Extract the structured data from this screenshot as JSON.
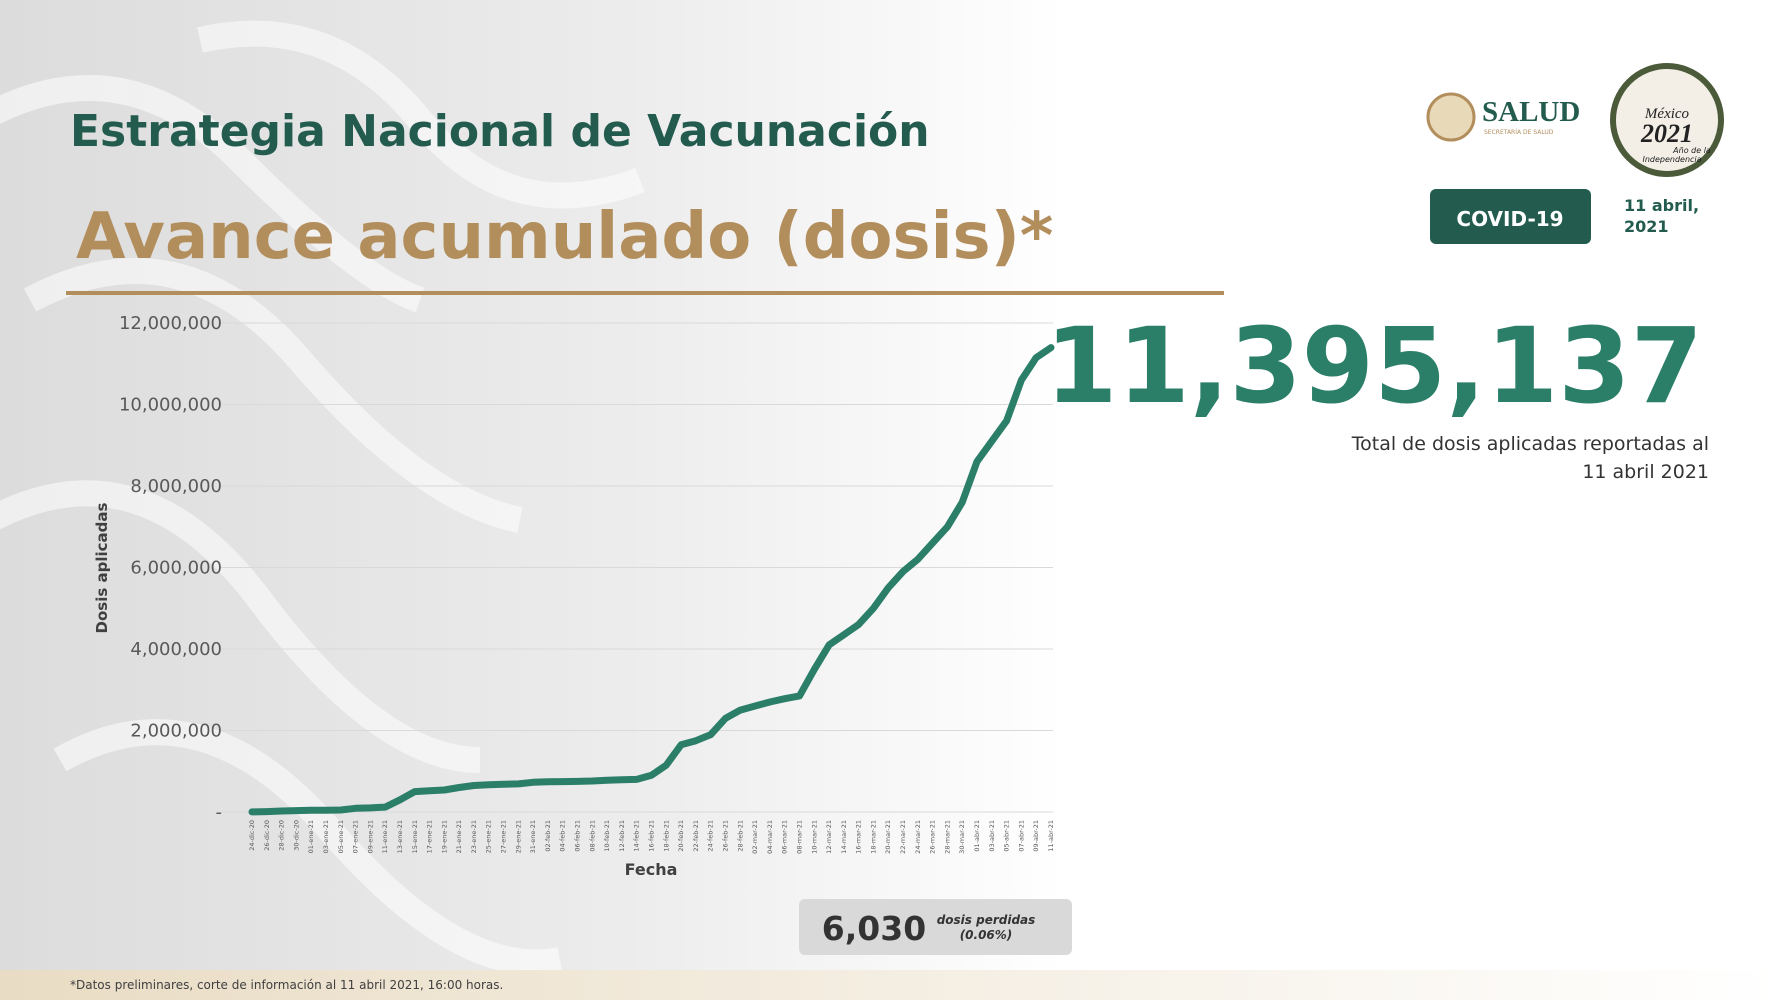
{
  "header": {
    "title": "Estrategia Nacional de Vacunación",
    "subtitle": "Avance acumulado (dosis)*",
    "agency": "SALUD",
    "agency_sub": "SECRETARÍA DE SALUD",
    "badge": "COVID-19",
    "date_lines": [
      "11 abril,",
      "2021"
    ],
    "logo_lines": [
      "México",
      "2021",
      "Año de la",
      "Independencia"
    ]
  },
  "total": {
    "value": "11,395,137",
    "caption_lines": [
      "Total de dosis aplicadas reportadas al",
      "11 abril 2021"
    ]
  },
  "lost": {
    "value": "6,030",
    "caption_lines": [
      "dosis perdidas",
      "(0.06%)"
    ]
  },
  "footnote": "*Datos preliminares, corte de información al 11 abril 2021, 16:00 horas.",
  "chart_data": {
    "type": "line",
    "x_label": "Fecha",
    "y_label": "Dosis aplicadas",
    "color": "#2b7f69",
    "grid": true,
    "categories": [
      "24-dic-20",
      "26-dic-20",
      "28-dic-20",
      "30-dic-20",
      "01-ene-21",
      "03-ene-21",
      "05-ene-21",
      "07-ene-21",
      "09-ene-21",
      "11-ene-21",
      "13-ene-21",
      "15-ene-21",
      "17-ene-21",
      "19-ene-21",
      "21-ene-21",
      "23-ene-21",
      "25-ene-21",
      "27-ene-21",
      "29-ene-21",
      "31-ene-21",
      "02-feb-21",
      "04-feb-21",
      "06-feb-21",
      "08-feb-21",
      "10-feb-21",
      "12-feb-21",
      "14-feb-21",
      "16-feb-21",
      "18-feb-21",
      "20-feb-21",
      "22-feb-21",
      "24-feb-21",
      "26-feb-21",
      "28-feb-21",
      "02-mar-21",
      "04-mar-21",
      "06-mar-21",
      "08-mar-21",
      "10-mar-21",
      "12-mar-21",
      "14-mar-21",
      "16-mar-21",
      "18-mar-21",
      "20-mar-21",
      "22-mar-21",
      "24-mar-21",
      "26-mar-21",
      "28-mar-21",
      "30-mar-21",
      "01-abr-21",
      "03-abr-21",
      "05-abr-21",
      "07-abr-21",
      "09-abr-21",
      "11-abr-21"
    ],
    "values": [
      3000,
      10000,
      25000,
      35000,
      45000,
      45000,
      50000,
      90000,
      100000,
      120000,
      300000,
      500000,
      520000,
      540000,
      600000,
      650000,
      670000,
      680000,
      690000,
      730000,
      740000,
      745000,
      750000,
      760000,
      780000,
      790000,
      800000,
      900000,
      1150000,
      1650000,
      1750000,
      1900000,
      2300000,
      2500000,
      2600000,
      2700000,
      2780000,
      2850000,
      3500000,
      4100000,
      4350000,
      4600000,
      5000000,
      5500000,
      5900000,
      6200000,
      6600000,
      7000000,
      7600000,
      8600000,
      9100000,
      9600000,
      10600000,
      11150000,
      11395137
    ],
    "ylim": [
      0,
      12000000
    ],
    "yticks": [
      {
        "value": 0,
        "label": "-"
      },
      {
        "value": 2000000,
        "label": "2,000,000"
      },
      {
        "value": 4000000,
        "label": "4,000,000"
      },
      {
        "value": 6000000,
        "label": "6,000,000"
      },
      {
        "value": 8000000,
        "label": "8,000,000"
      },
      {
        "value": 10000000,
        "label": "10,000,000"
      },
      {
        "value": 12000000,
        "label": "12,000,000"
      }
    ]
  }
}
